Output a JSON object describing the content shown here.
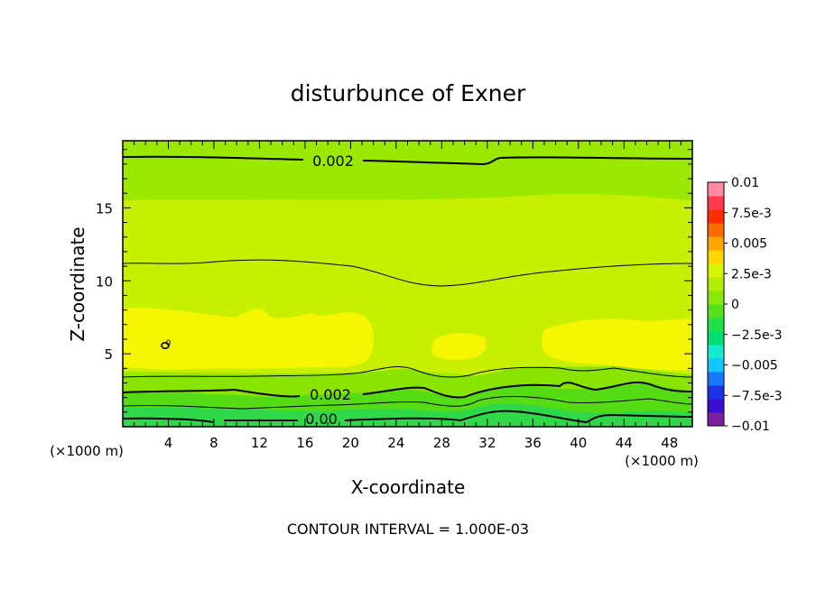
{
  "chart_data": {
    "type": "heatmap",
    "title": "disturbunce of Exner",
    "xlabel": "X-coordinate",
    "ylabel": "Z-coordinate",
    "x_unit_left": "(×1000 m)",
    "x_unit_right": "(×1000 m)",
    "xlim": [
      0,
      50
    ],
    "ylim": [
      0,
      19.6
    ],
    "x_ticks": [
      4,
      8,
      12,
      16,
      20,
      24,
      28,
      32,
      36,
      40,
      44,
      48
    ],
    "y_ticks": [
      5,
      10,
      15
    ],
    "footer": "CONTOUR INTERVAL = 1.000E-03",
    "contour_labels": [
      {
        "text": "0.002",
        "x": 22.0,
        "y": 18.5
      },
      {
        "text": "0.002",
        "x": 19.6,
        "y": 2.25
      },
      {
        "text": "0.00",
        "x": 17.5,
        "y": 0.45
      },
      {
        "text": "0",
        "x": 4.0,
        "y": 5.7
      }
    ],
    "colorbar": {
      "levels": [
        -0.01,
        -0.0075,
        -0.005,
        -0.0025,
        0,
        0.0025,
        0.005,
        0.0075,
        0.01
      ],
      "tick_labels": [
        "0.01",
        "7.5e-3",
        "0.005",
        "2.5e-3",
        "0",
        "−2.5e-3",
        "−0.005",
        "−7.5e-3",
        "−0.01"
      ],
      "colors_bottom_to_top": [
        "#7b1fa2",
        "#3d0fd0",
        "#1b34e8",
        "#1a78ff",
        "#11c5ff",
        "#14ecd2",
        "#00e070",
        "#1fe046",
        "#56e01c",
        "#88e80c",
        "#b2ee00",
        "#d8f500",
        "#ffd600",
        "#ffa600",
        "#ff6a00",
        "#ff2d00",
        "#ff3a4e",
        "#ff8aa0"
      ]
    },
    "colors": {
      "band_high": "#9be800",
      "band_mid": "#c7ef00",
      "band_blob": "#f4f700",
      "band_low1": "#7fe000",
      "band_low2": "#4ad81e",
      "band_low3": "#2bd64a"
    }
  }
}
